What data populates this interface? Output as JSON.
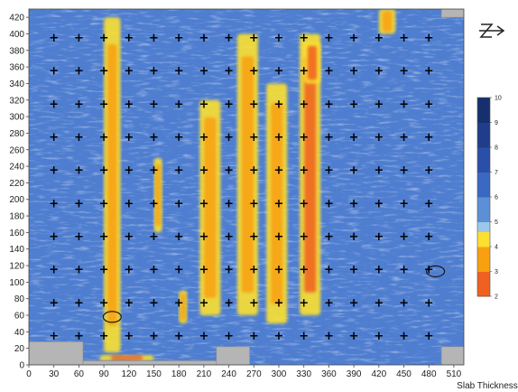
{
  "chart_data": {
    "type": "heatmap",
    "title": "",
    "xlabel": "Slab Thickness",
    "ylabel": "",
    "xlim": [
      0,
      522
    ],
    "ylim": [
      0,
      430
    ],
    "x_ticks": [
      0,
      30,
      60,
      90,
      120,
      150,
      180,
      210,
      240,
      270,
      300,
      330,
      360,
      390,
      420,
      450,
      480,
      510
    ],
    "y_ticks": [
      0,
      20,
      40,
      60,
      80,
      100,
      120,
      140,
      160,
      180,
      200,
      220,
      240,
      260,
      280,
      300,
      320,
      340,
      360,
      380,
      400,
      420
    ],
    "colorbar": {
      "ticks": [
        2,
        3,
        4,
        5,
        6,
        7,
        8,
        9,
        10
      ],
      "stops": [
        {
          "value": 2,
          "color": "#e8202a"
        },
        {
          "value": 3,
          "color": "#f06020"
        },
        {
          "value": 4,
          "color": "#f8a010"
        },
        {
          "value": 4.6,
          "color": "#fbe030"
        },
        {
          "value": 5,
          "color": "#9cc6ea"
        },
        {
          "value": 6,
          "color": "#5d8fd6"
        },
        {
          "value": 7,
          "color": "#3a68c2"
        },
        {
          "value": 8,
          "color": "#2a4fa8"
        },
        {
          "value": 9,
          "color": "#1f3d8a"
        },
        {
          "value": 10,
          "color": "#16306e"
        }
      ]
    },
    "grid_markers": {
      "symbol": "+",
      "x": [
        30,
        60,
        90,
        120,
        150,
        180,
        210,
        240,
        270,
        300,
        330,
        360,
        390,
        420,
        450,
        480
      ],
      "y": [
        35,
        75,
        115,
        155,
        195,
        235,
        275,
        315,
        355,
        395
      ]
    },
    "thin_zones": [
      {
        "x": [
          90,
          110
        ],
        "y": [
          15,
          420
        ],
        "level": 4
      },
      {
        "x": [
          150,
          160
        ],
        "y": [
          160,
          250
        ],
        "level": 4
      },
      {
        "x": [
          205,
          230
        ],
        "y": [
          60,
          320
        ],
        "level": 3.5
      },
      {
        "x": [
          250,
          275
        ],
        "y": [
          60,
          400
        ],
        "level": 3.5
      },
      {
        "x": [
          285,
          310
        ],
        "y": [
          50,
          340
        ],
        "level": 3.5
      },
      {
        "x": [
          325,
          350
        ],
        "y": [
          60,
          400
        ],
        "level": 3
      },
      {
        "x": [
          330,
          350
        ],
        "y": [
          340,
          390
        ],
        "level": 2.5
      },
      {
        "x": [
          180,
          190
        ],
        "y": [
          50,
          90
        ],
        "level": 4
      },
      {
        "x": [
          420,
          440
        ],
        "y": [
          400,
          430
        ],
        "level": 4
      },
      {
        "x": [
          85,
          150
        ],
        "y": [
          5,
          12
        ],
        "level": 3
      }
    ],
    "missing_regions": [
      {
        "x": [
          0,
          65
        ],
        "y": [
          0,
          28
        ]
      },
      {
        "x": [
          65,
          225
        ],
        "y": [
          0,
          5
        ]
      },
      {
        "x": [
          225,
          265
        ],
        "y": [
          0,
          22
        ]
      },
      {
        "x": [
          495,
          522
        ],
        "y": [
          0,
          22
        ]
      },
      {
        "x": [
          495,
          522
        ],
        "y": [
          420,
          430
        ]
      }
    ],
    "ellipses": [
      {
        "cx": 100,
        "cy": 58
      },
      {
        "cx": 488,
        "cy": 113
      }
    ]
  },
  "icons": {
    "north_arrow": "north-arrow-icon"
  }
}
